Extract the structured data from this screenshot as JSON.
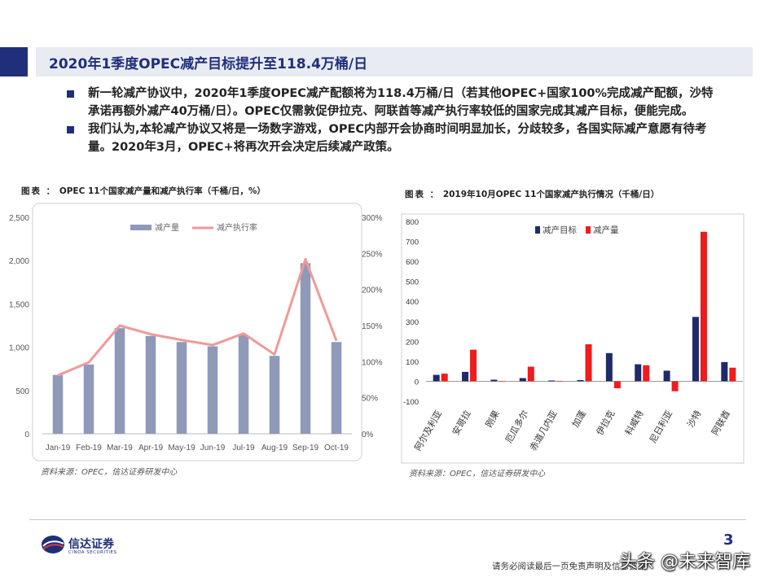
{
  "slide": {
    "title": "2020年1季度OPEC减产目标提升至118.4万桶/日",
    "bullets": [
      "新一轮减产协议中，2020年1季度OPEC减产配额将为118.4万桶/日（若其他OPEC+国家100%完成减产配额，沙特承诺再额外减产40万桶/日）。OPEC仅需敦促伊拉克、阿联酋等减产执行率较低的国家完成其减产目标，便能完成。",
      "我们认为,本轮减产协议又将是一场数字游戏，OPEC内部开会协商时间明显加长，分歧较多，各国实际减产意愿有待考量。2020年3月，OPEC+将再次开会决定后续减产政策。"
    ],
    "page_number": "3",
    "disclaimer": "请务必阅读最后一页免责声明及信息披露",
    "watermark": "头条 @未来智库",
    "logo": {
      "cn": "信达证券",
      "en": "CINDA SECURITIES"
    },
    "colors": {
      "brand": "#1f2f7a",
      "bar1": "#8e9ab8",
      "line1": "#ef9a9a",
      "navy": "#1f2a6b",
      "red": "#ee1c1c"
    }
  },
  "chart_data": [
    {
      "type": "bar",
      "caption_prefix": "图表 ：",
      "title": "OPEC 11个国家减产量和减产执行率（千桶/日，%）",
      "source": "资料来源：OPEC，信达证券研发中心",
      "categories": [
        "Jan-19",
        "Feb-19",
        "Mar-19",
        "Apr-19",
        "May-19",
        "Jun-19",
        "Jul-19",
        "Aug-19",
        "Sep-19",
        "Oct-19"
      ],
      "series": [
        {
          "name": "减产量",
          "type": "bar",
          "axis": "left",
          "values": [
            680,
            800,
            1220,
            1130,
            1060,
            1010,
            1140,
            900,
            1970,
            1060
          ]
        },
        {
          "name": "减产执行率",
          "type": "line",
          "axis": "right",
          "values": [
            81,
            99,
            150,
            138,
            130,
            123,
            139,
            110,
            242,
            129
          ]
        }
      ],
      "yleft": {
        "ylim": [
          0,
          2500
        ],
        "ticks": [
          "0",
          "500",
          "1,000",
          "1,500",
          "2,000",
          "2,500"
        ]
      },
      "yright": {
        "ylim": [
          0,
          300
        ],
        "ticks": [
          "0%",
          "50%",
          "100%",
          "150%",
          "200%",
          "250%",
          "300%"
        ]
      },
      "legend": "top-left",
      "grid": false
    },
    {
      "type": "bar",
      "caption_prefix": "图表 ：",
      "title": "2019年10月OPEC 11个国家减产执行情况（千桶/日）",
      "source": "资料来源：OPEC，信达证券研发中心",
      "categories": [
        "阿尔及利亚",
        "安哥拉",
        "刚果",
        "厄瓜多尔",
        "赤道几内亚",
        "加蓬",
        "伊拉克",
        "科威特",
        "尼日利亚",
        "沙特",
        "阿联酋"
      ],
      "series": [
        {
          "name": "减产目标",
          "values": [
            32,
            47,
            8,
            16,
            4,
            6,
            141,
            85,
            53,
            322,
            96
          ]
        },
        {
          "name": "减产量",
          "values": [
            38,
            158,
            2,
            73,
            2,
            185,
            -35,
            80,
            -50,
            748,
            68
          ]
        }
      ],
      "ylim": [
        -100,
        800
      ],
      "ticks": [
        "-100",
        "0",
        "100",
        "200",
        "300",
        "400",
        "500",
        "600",
        "700",
        "800"
      ],
      "legend": "top-left",
      "grid": false
    }
  ]
}
